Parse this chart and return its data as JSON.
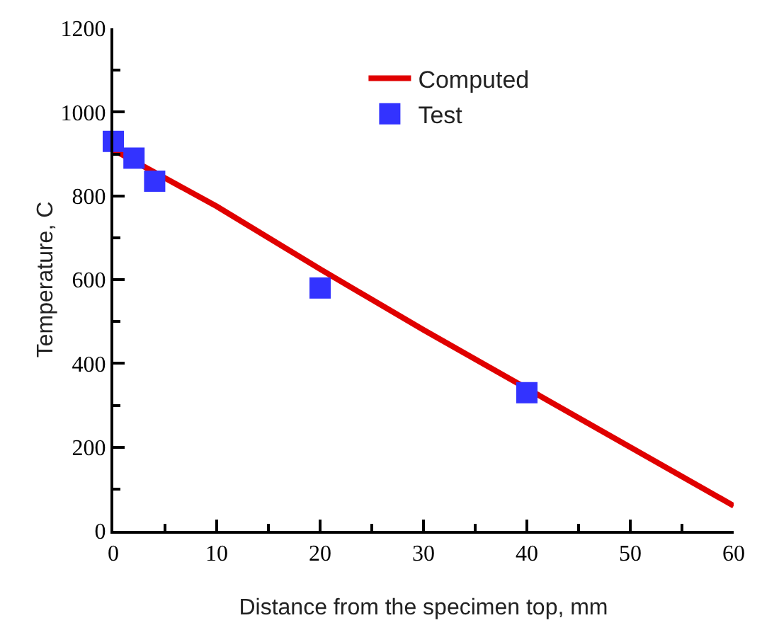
{
  "chart_data": {
    "type": "line",
    "xlabel": "Distance from the specimen top, mm",
    "ylabel": "Temperature, C",
    "series": [
      {
        "name": "Computed",
        "color": "#e00000",
        "x": [
          0,
          10,
          20,
          30,
          40,
          50,
          60
        ],
        "values": [
          910,
          775,
          625,
          480,
          340,
          200,
          60
        ]
      },
      {
        "name": "Test",
        "type": "scatter",
        "color": "#3333ff",
        "x": [
          0,
          2,
          4,
          20,
          40
        ],
        "values": [
          930,
          890,
          835,
          580,
          330
        ],
        "marker": "square"
      }
    ],
    "xlim": [
      0,
      60
    ],
    "xticks": [
      0,
      10,
      20,
      30,
      40,
      50,
      60
    ],
    "ylim": [
      0,
      1200
    ],
    "yticks": [
      0,
      200,
      400,
      600,
      800,
      1000,
      1200
    ],
    "grid": false,
    "legend": "top right"
  }
}
